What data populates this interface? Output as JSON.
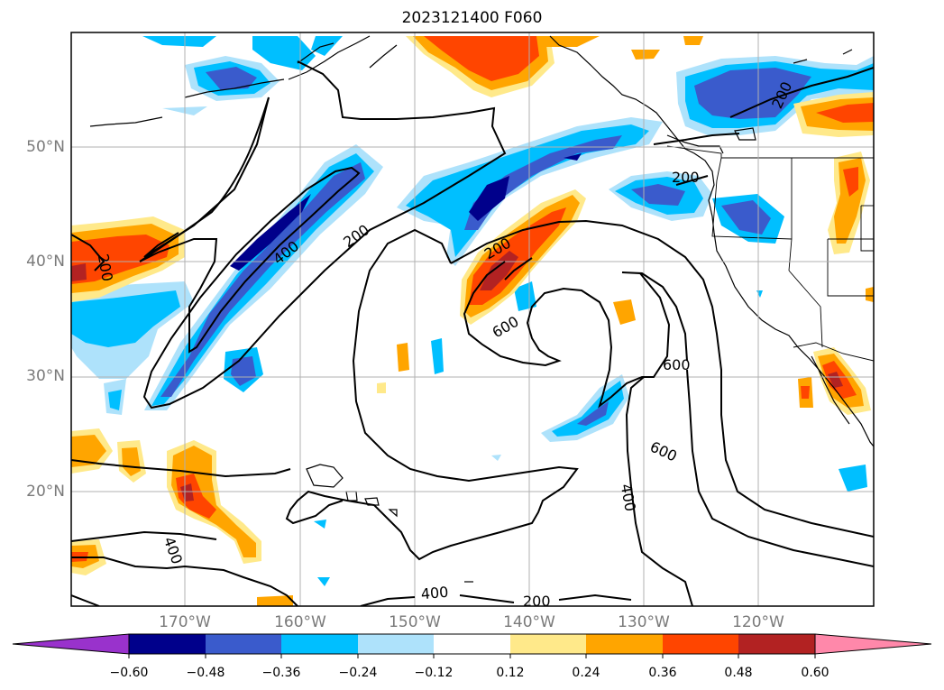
{
  "title": "2023121400 F060",
  "lat_labels": [
    "50°N",
    "40°N",
    "30°N",
    "20°N"
  ],
  "lon_labels": [
    "170°W",
    "160°W",
    "150°W",
    "140°W",
    "130°W",
    "120°W"
  ],
  "contour_labels": [
    "200",
    "400",
    "200",
    "200",
    "600",
    "600",
    "600",
    "400",
    "400",
    "400",
    "200",
    "200"
  ],
  "colorbar": {
    "ticks": [
      "−0.60",
      "−0.48",
      "−0.36",
      "−0.24",
      "−0.12",
      "0.12",
      "0.24",
      "0.36",
      "0.48",
      "0.60"
    ],
    "colors": [
      "#9932cc",
      "#00008b",
      "#3a5bcc",
      "#00bfff",
      "#aee2fb",
      "#ffffff",
      "#ffe98a",
      "#ffa500",
      "#ff4500",
      "#b22222",
      "#ff88aa"
    ]
  }
}
